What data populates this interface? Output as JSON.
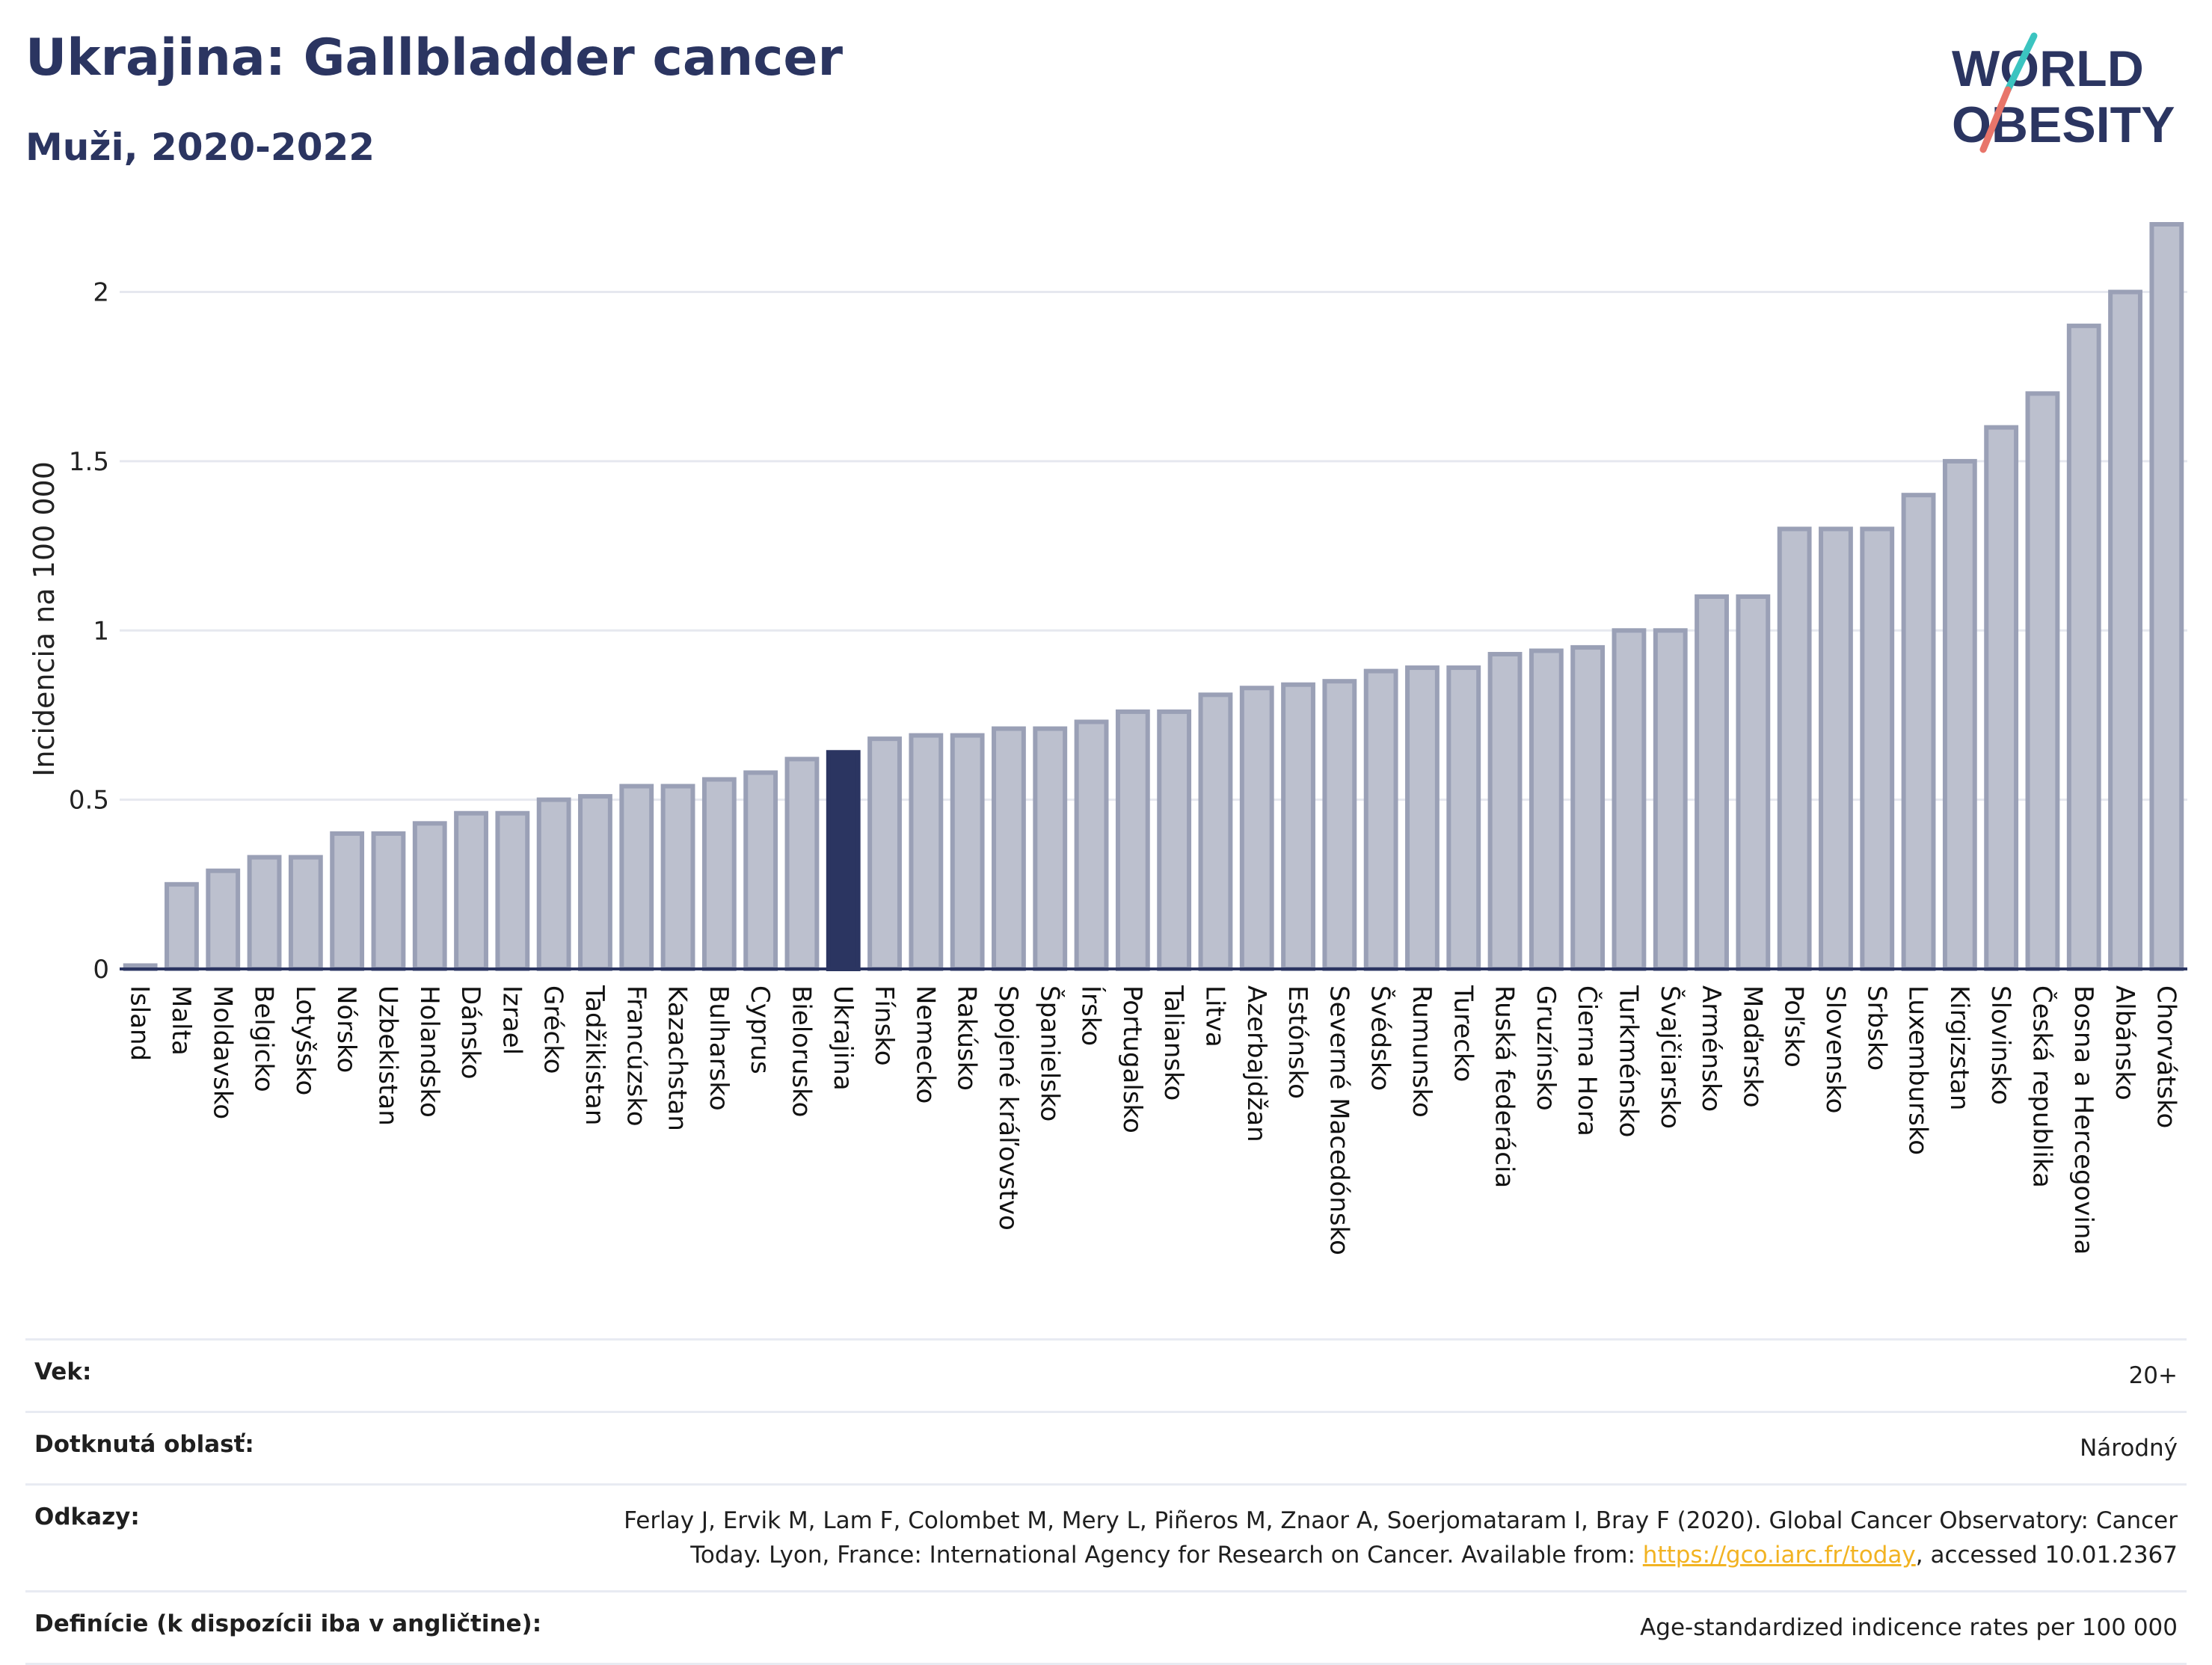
{
  "header": {
    "title": "Ukrajina: Gallbladder cancer",
    "subtitle": "Muži, 2020-2022"
  },
  "logo": {
    "line1": "WORLD",
    "line2": "OBESITY",
    "accent_colors": [
      "#3bc4c0",
      "#e8756a"
    ]
  },
  "chart_data": {
    "type": "bar",
    "ylabel": "Incidencia na 100 000",
    "xlabel": "",
    "ylim": [
      0,
      2.2
    ],
    "yticks": [
      0,
      0.5,
      1,
      1.5,
      2
    ],
    "ytick_labels": [
      "0",
      "0.5",
      "1",
      "1.5",
      "2"
    ],
    "highlight": "Ukrajina",
    "colors": {
      "bar": "#bcc0ce",
      "bar_border": "#9aa0b6",
      "highlight": "#2b3561",
      "grid": "#e6e8ef",
      "axis": "#2b3561"
    },
    "categories": [
      "Island",
      "Malta",
      "Moldavsko",
      "Belgicko",
      "Lotyšsko",
      "Nórsko",
      "Uzbekistan",
      "Holandsko",
      "Dánsko",
      "Izrael",
      "Grécko",
      "Tadžikistan",
      "Francúzsko",
      "Kazachstan",
      "Bulharsko",
      "Cyprus",
      "Bielorusko",
      "Ukrajina",
      "Fínsko",
      "Nemecko",
      "Rakúsko",
      "Spojené kráľovstvo",
      "Španielsko",
      "Írsko",
      "Portugalsko",
      "Taliansko",
      "Litva",
      "Azerbajdžan",
      "Estónsko",
      "Severné Macedónsko",
      "Švédsko",
      "Rumunsko",
      "Turecko",
      "Ruská federácia",
      "Gruzínsko",
      "Čierna Hora",
      "Turkménsko",
      "Švajčiarsko",
      "Arménsko",
      "Maďarsko",
      "Poľsko",
      "Slovensko",
      "Srbsko",
      "Luxembursko",
      "Kirgizstan",
      "Slovinsko",
      "Česká republika",
      "Bosna a Hercegovina",
      "Albánsko",
      "Chorvátsko"
    ],
    "values": [
      0.01,
      0.25,
      0.29,
      0.33,
      0.33,
      0.4,
      0.4,
      0.43,
      0.46,
      0.46,
      0.5,
      0.51,
      0.54,
      0.54,
      0.56,
      0.58,
      0.62,
      0.64,
      0.68,
      0.69,
      0.69,
      0.71,
      0.71,
      0.73,
      0.76,
      0.76,
      0.81,
      0.83,
      0.84,
      0.85,
      0.88,
      0.89,
      0.89,
      0.93,
      0.94,
      0.95,
      1.0,
      1.0,
      1.1,
      1.1,
      1.3,
      1.3,
      1.3,
      1.4,
      1.5,
      1.6,
      1.7,
      1.9,
      2.0,
      2.2
    ]
  },
  "info": {
    "rows": [
      {
        "label": "Vek:",
        "value": "20+"
      },
      {
        "label": "Dotknutá oblasť:",
        "value": "Národný"
      },
      {
        "label": "Odkazy:",
        "value": "Ferlay J, Ervik M, Lam F, Colombet M, Mery L, Piñeros M, Znaor A, Soerjomataram I, Bray F (2020). Global Cancer Observatory: Cancer Today. Lyon, France: International Agency for Research on Cancer. Available from: ",
        "link": "https://gco.iarc.fr/today",
        "value_after": ", accessed 10.01.2367"
      },
      {
        "label": "Definície (k dispozícii iba v angličtine):",
        "value": "Age-standardized indicence rates per 100 000"
      }
    ]
  }
}
